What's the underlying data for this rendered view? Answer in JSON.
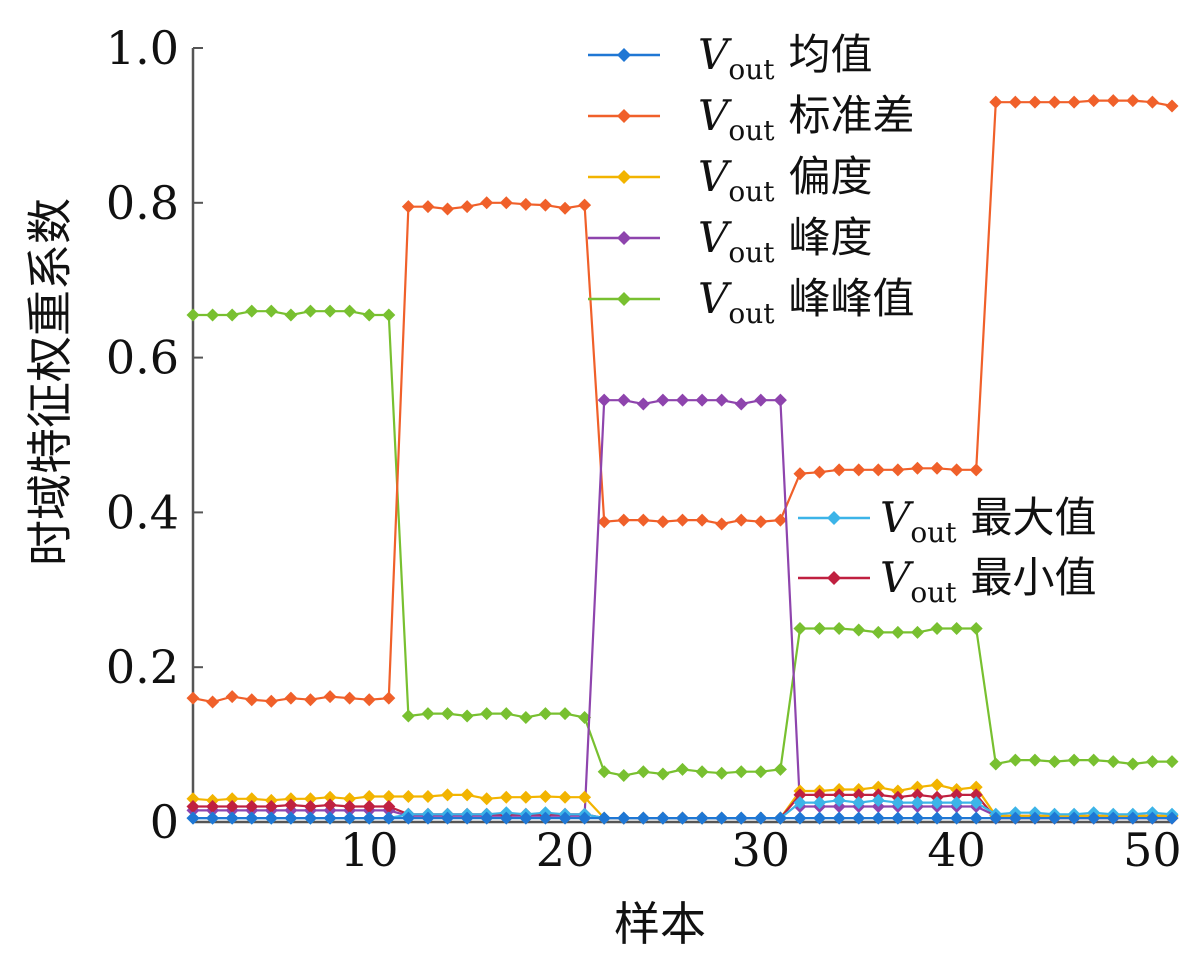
{
  "chart_data": {
    "type": "line",
    "xlabel": "样本",
    "ylabel": "时域特征权重系数",
    "xlim": [
      1,
      51
    ],
    "ylim": [
      0,
      1.0
    ],
    "xticks": [
      10,
      20,
      30,
      40,
      50
    ],
    "yticks": [
      0,
      0.2,
      0.4,
      0.6,
      0.8,
      1.0
    ],
    "ytick_labels": [
      "0",
      "0.2",
      "0.4",
      "0.6",
      "0.8",
      "1.0"
    ],
    "legend_prefix": "V",
    "legend_subscript": "out",
    "legends": [
      {
        "placement": "top-right",
        "series": [
          0,
          1,
          2,
          3,
          4
        ]
      },
      {
        "placement": "center-right",
        "series": [
          5,
          6
        ]
      }
    ],
    "series": [
      {
        "name": "均值",
        "color": "#1f77d4",
        "values": [
          0.005,
          0.005,
          0.005,
          0.005,
          0.005,
          0.005,
          0.005,
          0.005,
          0.005,
          0.005,
          0.005,
          0.005,
          0.005,
          0.005,
          0.005,
          0.005,
          0.005,
          0.005,
          0.005,
          0.005,
          0.005,
          0.005,
          0.005,
          0.005,
          0.005,
          0.005,
          0.005,
          0.005,
          0.005,
          0.005,
          0.005,
          0.005,
          0.005,
          0.005,
          0.005,
          0.005,
          0.005,
          0.005,
          0.005,
          0.005,
          0.005,
          0.005,
          0.005,
          0.005,
          0.005,
          0.005,
          0.005,
          0.005,
          0.005,
          0.005,
          0.005
        ]
      },
      {
        "name": "标准差",
        "color": "#f0602a",
        "values": [
          0.16,
          0.155,
          0.162,
          0.158,
          0.156,
          0.16,
          0.158,
          0.162,
          0.16,
          0.158,
          0.16,
          0.795,
          0.795,
          0.792,
          0.795,
          0.8,
          0.8,
          0.798,
          0.797,
          0.793,
          0.797,
          0.388,
          0.39,
          0.39,
          0.388,
          0.39,
          0.39,
          0.385,
          0.39,
          0.388,
          0.39,
          0.45,
          0.452,
          0.455,
          0.455,
          0.455,
          0.455,
          0.457,
          0.457,
          0.455,
          0.455,
          0.93,
          0.93,
          0.93,
          0.93,
          0.93,
          0.932,
          0.932,
          0.932,
          0.93,
          0.925
        ]
      },
      {
        "name": "偏度",
        "color": "#f2b400",
        "values": [
          0.03,
          0.028,
          0.03,
          0.03,
          0.028,
          0.03,
          0.03,
          0.032,
          0.03,
          0.033,
          0.033,
          0.033,
          0.033,
          0.035,
          0.035,
          0.03,
          0.032,
          0.032,
          0.033,
          0.032,
          0.032,
          0.005,
          0.005,
          0.005,
          0.005,
          0.005,
          0.005,
          0.005,
          0.005,
          0.005,
          0.005,
          0.04,
          0.04,
          0.042,
          0.042,
          0.045,
          0.04,
          0.045,
          0.048,
          0.042,
          0.045,
          0.008,
          0.008,
          0.008,
          0.008,
          0.008,
          0.008,
          0.008,
          0.008,
          0.008,
          0.008
        ]
      },
      {
        "name": "峰度",
        "color": "#8e44ad",
        "values": [
          0.015,
          0.015,
          0.015,
          0.015,
          0.015,
          0.015,
          0.015,
          0.015,
          0.015,
          0.015,
          0.015,
          0.008,
          0.008,
          0.008,
          0.008,
          0.008,
          0.008,
          0.008,
          0.008,
          0.008,
          0.008,
          0.545,
          0.545,
          0.54,
          0.545,
          0.545,
          0.545,
          0.545,
          0.54,
          0.545,
          0.545,
          0.02,
          0.02,
          0.02,
          0.02,
          0.02,
          0.02,
          0.02,
          0.02,
          0.02,
          0.02,
          0.008,
          0.008,
          0.008,
          0.008,
          0.008,
          0.008,
          0.008,
          0.008,
          0.008,
          0.008
        ]
      },
      {
        "name": "峰峰值",
        "color": "#78c030",
        "values": [
          0.655,
          0.655,
          0.655,
          0.66,
          0.66,
          0.655,
          0.66,
          0.66,
          0.66,
          0.655,
          0.655,
          0.137,
          0.14,
          0.14,
          0.137,
          0.14,
          0.14,
          0.135,
          0.14,
          0.14,
          0.135,
          0.065,
          0.06,
          0.065,
          0.062,
          0.068,
          0.065,
          0.063,
          0.065,
          0.065,
          0.068,
          0.25,
          0.25,
          0.25,
          0.248,
          0.245,
          0.245,
          0.245,
          0.25,
          0.25,
          0.25,
          0.075,
          0.08,
          0.08,
          0.078,
          0.08,
          0.08,
          0.078,
          0.075,
          0.078,
          0.078
        ]
      },
      {
        "name": "最大值",
        "color": "#3cb4e8",
        "values": [
          0.005,
          0.005,
          0.005,
          0.005,
          0.005,
          0.005,
          0.005,
          0.005,
          0.005,
          0.005,
          0.005,
          0.01,
          0.01,
          0.01,
          0.01,
          0.01,
          0.012,
          0.01,
          0.012,
          0.01,
          0.01,
          0.005,
          0.005,
          0.005,
          0.005,
          0.005,
          0.005,
          0.005,
          0.005,
          0.005,
          0.005,
          0.025,
          0.025,
          0.028,
          0.025,
          0.028,
          0.025,
          0.025,
          0.025,
          0.025,
          0.025,
          0.01,
          0.012,
          0.012,
          0.01,
          0.01,
          0.012,
          0.01,
          0.01,
          0.012,
          0.01
        ]
      },
      {
        "name": "最小值",
        "color": "#c02040",
        "values": [
          0.02,
          0.02,
          0.02,
          0.02,
          0.02,
          0.022,
          0.02,
          0.022,
          0.02,
          0.02,
          0.02,
          0.01,
          0.01,
          0.01,
          0.01,
          0.01,
          0.01,
          0.01,
          0.01,
          0.01,
          0.01,
          0.005,
          0.005,
          0.005,
          0.005,
          0.005,
          0.005,
          0.005,
          0.005,
          0.005,
          0.005,
          0.035,
          0.035,
          0.035,
          0.035,
          0.035,
          0.032,
          0.035,
          0.032,
          0.035,
          0.035,
          0.005,
          0.005,
          0.005,
          0.005,
          0.005,
          0.005,
          0.005,
          0.005,
          0.005,
          0.005
        ]
      }
    ]
  }
}
